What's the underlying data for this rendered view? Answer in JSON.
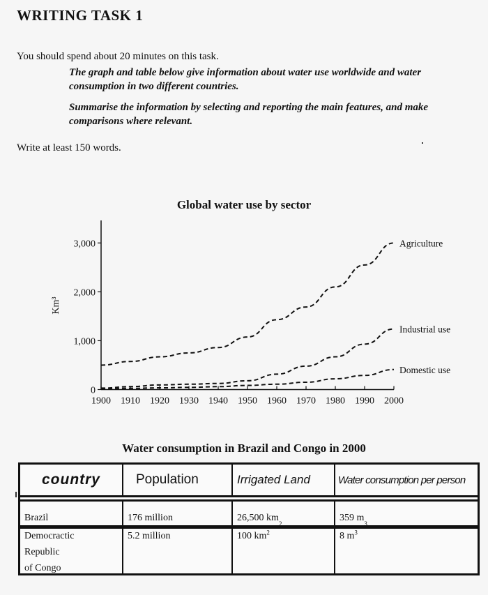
{
  "task": {
    "heading": "WRITING TASK 1",
    "time_instruction": "You should spend about 20 minutes on this task.",
    "prompt_lines": [
      "The graph and table below give information about water use worldwide and water consumption in two different countries.",
      "Summarise the information by selecting and reporting the main features, and make comparisons where relevant."
    ],
    "word_requirement": "Write at least 150 words."
  },
  "chart_data": {
    "type": "line",
    "title": "Global water use by sector",
    "xlabel": "",
    "ylabel": "Km³",
    "x": [
      1900,
      1910,
      1920,
      1930,
      1940,
      1950,
      1960,
      1970,
      1980,
      1990,
      2000
    ],
    "xticks": [
      "1900",
      "1910",
      "1920",
      "1930",
      "1940",
      "1950",
      "1960",
      "1970",
      "1980",
      "1990",
      "2000"
    ],
    "yticks": [
      "0",
      "1,000",
      "2,000",
      "3,000"
    ],
    "ylim": [
      0,
      3000
    ],
    "xlim": [
      1900,
      2000
    ],
    "grid": false,
    "legend_position": "inline labels at line ends (right)",
    "line_style": "dashed",
    "series": [
      {
        "name": "Agriculture",
        "values": [
          500,
          575,
          670,
          750,
          860,
          1075,
          1430,
          1690,
          2100,
          2550,
          3000
        ]
      },
      {
        "name": "Industrial use",
        "values": [
          30,
          60,
          95,
          110,
          125,
          180,
          315,
          480,
          670,
          930,
          1240
        ]
      },
      {
        "name": "Domestic use",
        "values": [
          15,
          25,
          35,
          45,
          60,
          85,
          110,
          150,
          220,
          290,
          410
        ]
      }
    ]
  },
  "table": {
    "title": "Water consumption in Brazil and Congo in 2000",
    "headers": [
      "country",
      "Population",
      "Irrigated Land",
      "Water consumption per person"
    ],
    "rows": [
      {
        "country": "Brazil",
        "population": "176 million",
        "irrigated_value": "26,500 km",
        "irrigated_sup": "2",
        "consumption_value": "359 m",
        "consumption_sup": "3"
      },
      {
        "country_lines": [
          "Democractic",
          "Republic",
          "of Congo"
        ],
        "population": "5.2 million",
        "irrigated_value": "100 km",
        "irrigated_sup": "2",
        "consumption_value": "8 m",
        "consumption_sup": "3"
      }
    ]
  }
}
